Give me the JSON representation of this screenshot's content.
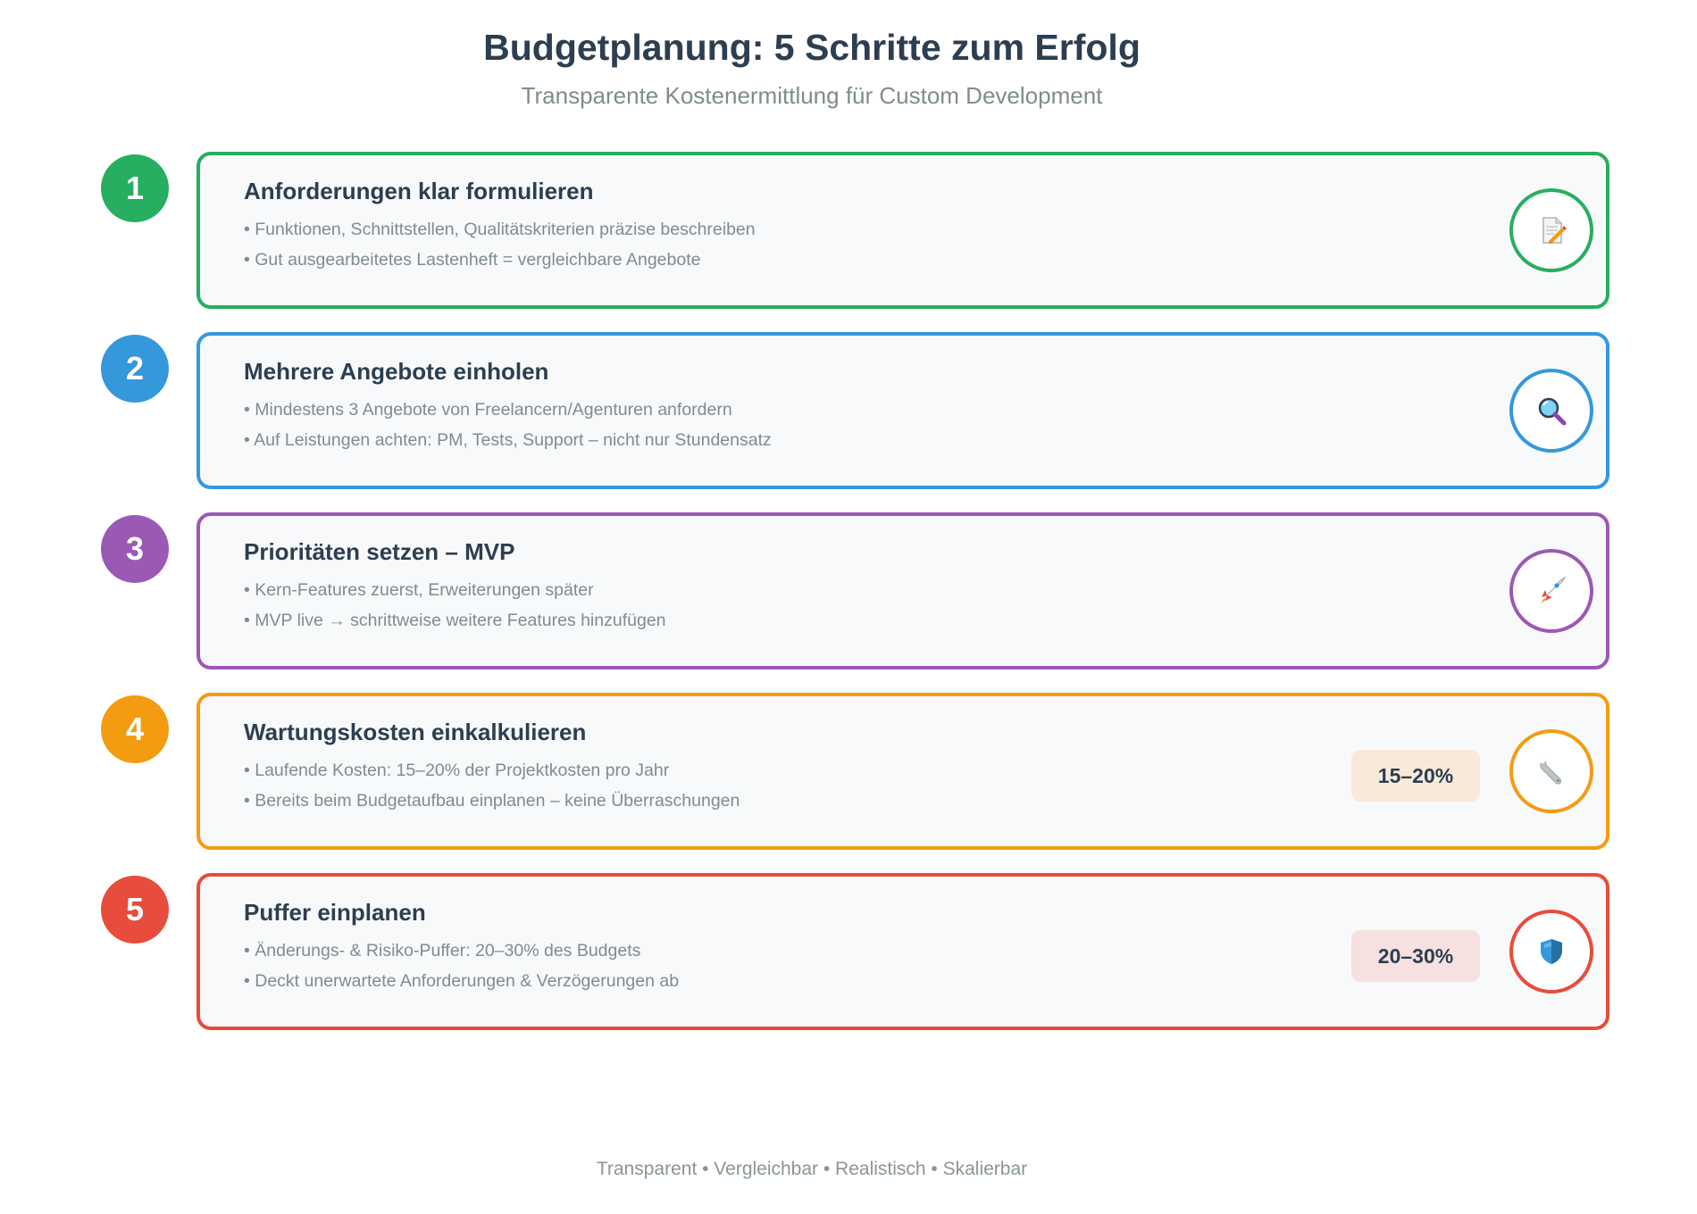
{
  "header": {
    "title": "Budgetplanung: 5 Schritte zum Erfolg",
    "subtitle": "Transparente Kostenermittlung für Custom Development"
  },
  "steps": [
    {
      "number": "1",
      "color": "#27ae60",
      "title": "Anforderungen klar formulieren",
      "bullet1": "• Funktionen, Schnittstellen, Qualitätskriterien präzise beschreiben",
      "bullet2": "• Gut ausgearbeitetes Lastenheft = vergleichbare Angebote",
      "icon": "memo-icon"
    },
    {
      "number": "2",
      "color": "#3498db",
      "title": "Mehrere Angebote einholen",
      "bullet1": "• Mindestens 3 Angebote von Freelancern/Agenturen anfordern",
      "bullet2": "• Auf Leistungen achten: PM, Tests, Support – nicht nur Stundensatz",
      "icon": "magnifier-icon"
    },
    {
      "number": "3",
      "color": "#9b59b6",
      "title": "Prioritäten setzen – MVP",
      "bullet1": "• Kern-Features zuerst, Erweiterungen später",
      "bullet2": "• MVP live → schrittweise weitere Features hinzufügen",
      "icon": "rocket-icon"
    },
    {
      "number": "4",
      "color": "#f39c12",
      "title": "Wartungskosten einkalkulieren",
      "bullet1": "• Laufende Kosten: 15–20% der Projektkosten pro Jahr",
      "bullet2": "• Bereits beim Budgetaufbau einplanen – keine Überraschungen",
      "badge": "15–20%",
      "badge_color": "#f8ead9",
      "icon": "wrench-icon"
    },
    {
      "number": "5",
      "color": "#e74c3c",
      "title": "Puffer einplanen",
      "bullet1": "• Änderungs- & Risiko-Puffer: 20–30% des Budgets",
      "bullet2": "• Deckt unerwartete Anforderungen & Verzögerungen ab",
      "badge": "20–30%",
      "badge_color": "#f6e0e0",
      "icon": "shield-icon"
    }
  ],
  "footer": {
    "text": "Transparent • Vergleichbar • Realistisch • Skalierbar"
  }
}
